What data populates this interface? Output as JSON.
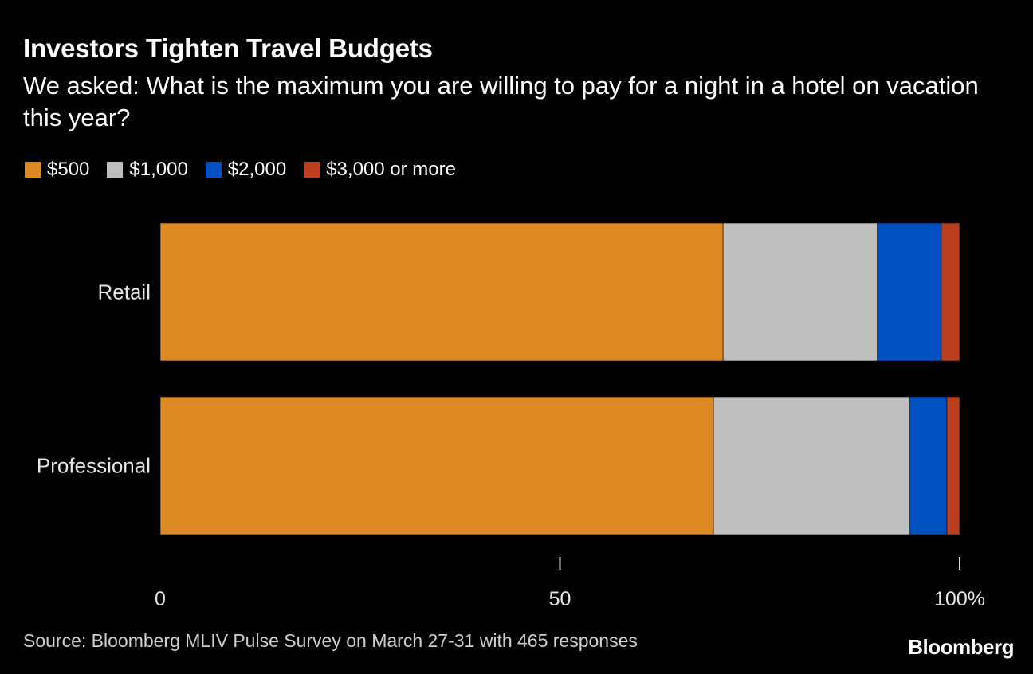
{
  "header": {
    "title": "Investors Tighten Travel Budgets",
    "subtitle": "We asked: What is the maximum you are willing to pay for a night in a hotel on vacation this year?"
  },
  "footer": {
    "source": "Source: Bloomberg MLIV Pulse Survey on March 27-31 with 465 responses",
    "brand": "Bloomberg"
  },
  "chart_data": {
    "type": "bar",
    "orientation": "horizontal",
    "stacked": true,
    "title": "Investors Tighten Travel Budgets",
    "subtitle": "We asked: What is the maximum you are willing to pay for a night in a hotel on vacation this year?",
    "categories": [
      "Retail",
      "Professional"
    ],
    "series": [
      {
        "name": "$500",
        "color": "#dd8a25",
        "values": [
          70.4,
          69.2
        ]
      },
      {
        "name": "$1,000",
        "color": "#bfbfbf",
        "values": [
          19.3,
          24.5
        ]
      },
      {
        "name": "$2,000",
        "color": "#0050c0",
        "values": [
          8.0,
          4.7
        ]
      },
      {
        "name": "$3,000 or more",
        "color": "#b83f1f",
        "values": [
          2.3,
          1.6
        ]
      }
    ],
    "xlim": [
      0,
      100
    ],
    "x_ticks": [
      "0",
      "50",
      "100%"
    ],
    "x_tick_values": [
      0,
      50,
      100
    ],
    "xlabel": "",
    "ylabel": "",
    "legend_position": "top-left",
    "grid": false
  }
}
